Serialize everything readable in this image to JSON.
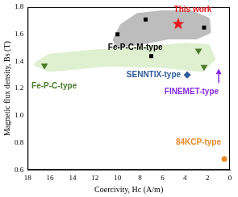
{
  "chart_data": {
    "type": "scatter",
    "x_label": "Coercivity, Hc (A/m)",
    "y_label": "Magnetic flux density, Bs (T)",
    "xlim": [
      0,
      18
    ],
    "xticks": [
      0,
      2,
      4,
      6,
      8,
      10,
      12,
      14,
      16,
      18
    ],
    "ylim": [
      0.6,
      1.8
    ],
    "yticks": [
      0.6,
      0.8,
      {
        "value": 1,
        "label": "1.0"
      },
      1.2,
      1.4,
      1.6,
      1.8
    ],
    "grid": false,
    "series": [
      {
        "name": "Fe-P-C-M-type",
        "type": "area",
        "color": "#bdbdbd",
        "x": [
          10.2,
          9.6,
          8.2,
          6.0,
          3.5,
          2.0,
          1.9,
          3.0,
          5.5,
          8.0,
          10.0
        ],
        "values": [
          1.56,
          1.66,
          1.74,
          1.76,
          1.76,
          1.71,
          1.62,
          1.58,
          1.58,
          1.54,
          1.52
        ]
      },
      {
        "name": "Fe-P-C-type",
        "type": "area",
        "color": "#dff0d0",
        "x": [
          17.2,
          16.0,
          12.0,
          8.0,
          4.0,
          2.0,
          1.5,
          2.5,
          6.0,
          11.0,
          16.0
        ],
        "values": [
          1.38,
          1.44,
          1.47,
          1.49,
          1.52,
          1.51,
          1.42,
          1.34,
          1.37,
          1.38,
          1.34
        ]
      },
      {
        "name": "Fe-P-C-M-type",
        "color": "#000000",
        "marker": "square",
        "x": [
          10,
          7.5,
          7,
          2.3
        ],
        "values": [
          1.6,
          1.71,
          1.44,
          1.65
        ]
      },
      {
        "name": "Fe-P-C-type",
        "color": "#4a7a2a",
        "marker": "triangle_down",
        "x": [
          16.5,
          2.8,
          2.3
        ],
        "values": [
          1.37,
          1.48,
          1.36
        ]
      },
      {
        "name": "SENNTIX-type",
        "color": "#2e5b9a",
        "marker": "diamond",
        "x": [
          3.8
        ],
        "values": [
          1.3
        ]
      },
      {
        "name": "FINEMET-type",
        "color": "#8a2be2",
        "marker": "arrow",
        "x": [
          1,
          1
        ],
        "values": [
          1.24,
          1.33
        ]
      },
      {
        "name": "84KCP-type",
        "color": "#e8892c",
        "marker": "circle",
        "x": [
          0.5
        ],
        "values": [
          0.68
        ]
      },
      {
        "name": "This work",
        "color": "#e41a1c",
        "marker": "star",
        "x": [
          4.6
        ],
        "values": [
          1.68
        ]
      }
    ]
  }
}
